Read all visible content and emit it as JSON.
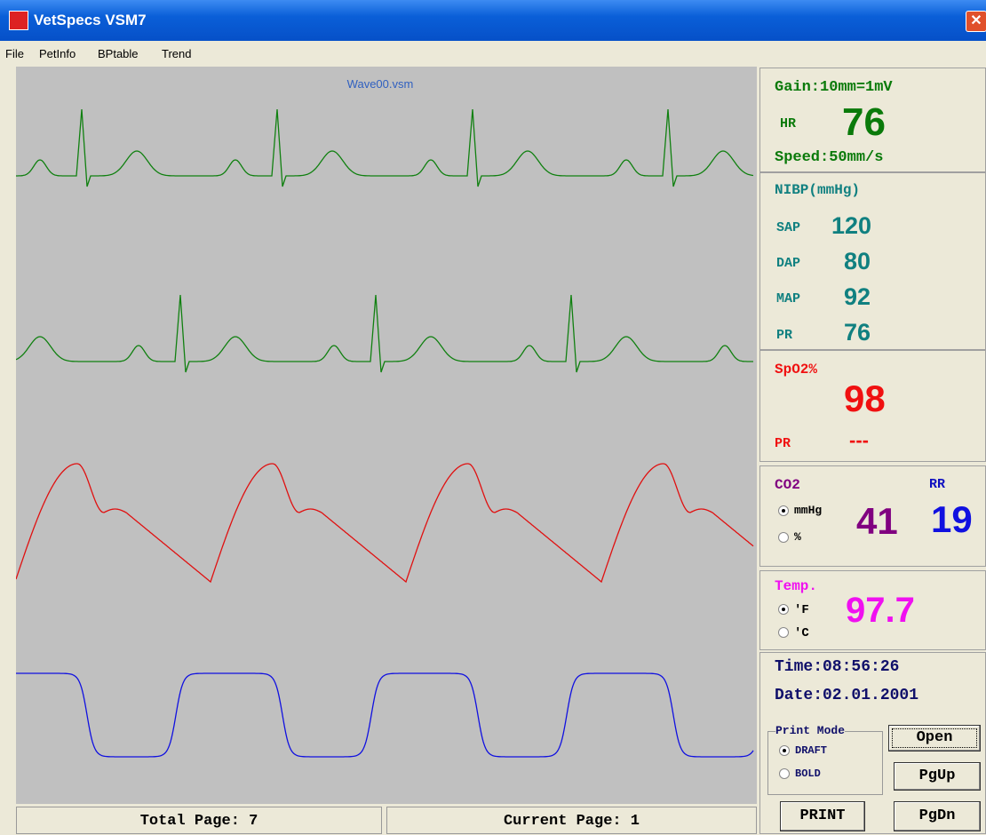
{
  "window": {
    "title": "VetSpecs  VSM7"
  },
  "menu": [
    "File",
    "PetInfo",
    "BPtable",
    "Trend"
  ],
  "wave": {
    "filename": "Wave00.vsm"
  },
  "ecg": {
    "gain": "Gain:10mm=1mV",
    "hr_label": "HR",
    "hr": "76",
    "speed": "Speed:50mm/s"
  },
  "nibp": {
    "title": "NIBP(mmHg)",
    "rows": [
      [
        "SAP",
        "120"
      ],
      [
        "DAP",
        "80"
      ],
      [
        "MAP",
        "92"
      ],
      [
        "PR",
        "76"
      ]
    ]
  },
  "spo2": {
    "title": "SpO2%",
    "value": "98",
    "pr_label": "PR",
    "pr": "---"
  },
  "co2": {
    "title": "CO2",
    "rr_label": "RR",
    "units": [
      "mmHg",
      "%"
    ],
    "value": "41",
    "rr": "19"
  },
  "temp": {
    "title": "Temp.",
    "units": [
      "'F",
      "'C"
    ],
    "value": "97.7"
  },
  "clock": {
    "time": "Time:08:56:26",
    "date": "Date:02.01.2001"
  },
  "print_mode": {
    "title": "Print Mode",
    "options": [
      "DRAFT",
      "BOLD"
    ]
  },
  "buttons": [
    "Open",
    "PgUp",
    "PRINT",
    "PgDn"
  ],
  "status": {
    "total": "Total Page: 7",
    "current": "Current Page: 1"
  }
}
